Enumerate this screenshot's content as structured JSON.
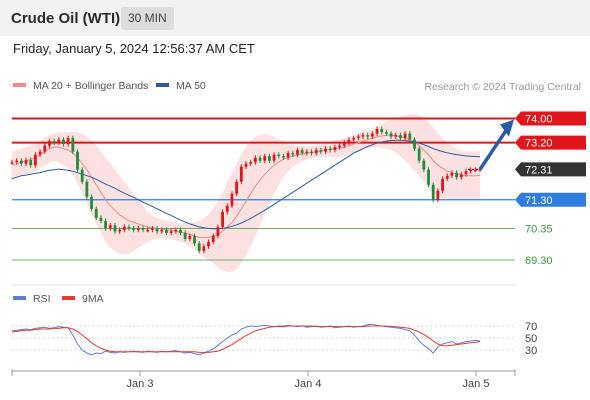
{
  "header": {
    "title": "Crude Oil (WTI)",
    "timeframe": "30 MIN"
  },
  "datetime": "Friday, January 5, 2024 12:56:37 AM CET",
  "legend": {
    "ma20": {
      "label": "MA 20 + Bollinger Bands",
      "color": "#f28b87"
    },
    "ma50": {
      "label": "MA 50",
      "color": "#2f5a9c"
    },
    "rsi": {
      "label": "RSI",
      "color": "#5b7fd6"
    },
    "rsi_ma": {
      "label": "9MA",
      "color": "#e53935"
    }
  },
  "source": "Research © 2024 Trading Central",
  "colors": {
    "resistance": "#e0161b",
    "support": "#2f7de1",
    "target_zone": "#3b9a3b",
    "current": "#333333",
    "arrow": "#2a5ca8",
    "candle_up": "#e0161b",
    "candle_down": "#1f8c3a"
  },
  "chart_data": [
    {
      "type": "candlestick",
      "y_min": 68.9,
      "y_max": 74.45,
      "x_ticks": [
        "Jan 3",
        "Jan 4",
        "Jan 5"
      ],
      "levels": [
        {
          "value": 74.0,
          "label": "74.00",
          "kind": "resistance"
        },
        {
          "value": 73.2,
          "label": "73.20",
          "kind": "resistance"
        },
        {
          "value": 72.31,
          "label": "72.31",
          "kind": "current"
        },
        {
          "value": 71.3,
          "label": "71.30",
          "kind": "support"
        },
        {
          "value": 70.35,
          "label": "70.35",
          "kind": "target"
        },
        {
          "value": 69.3,
          "label": "69.30",
          "kind": "target"
        }
      ],
      "close_series": [
        72.55,
        72.6,
        72.5,
        72.62,
        72.45,
        72.8,
        72.9,
        73.1,
        73.25,
        73.2,
        73.3,
        73.15,
        73.35,
        72.9,
        72.3,
        71.9,
        71.4,
        71.0,
        70.7,
        70.6,
        70.35,
        70.45,
        70.25,
        70.3,
        70.4,
        70.35,
        70.3,
        70.35,
        70.3,
        70.3,
        70.35,
        70.25,
        70.3,
        70.2,
        70.25,
        70.3,
        70.2,
        70.0,
        70.1,
        69.85,
        69.6,
        69.75,
        69.9,
        70.1,
        70.4,
        70.9,
        71.1,
        71.5,
        71.9,
        72.4,
        72.5,
        72.55,
        72.7,
        72.6,
        72.75,
        72.6,
        72.8,
        72.75,
        72.7,
        72.85,
        72.8,
        72.95,
        72.85,
        72.9,
        72.85,
        72.95,
        72.9,
        73.0,
        72.95,
        73.05,
        73.1,
        73.2,
        73.3,
        73.35,
        73.4,
        73.45,
        73.4,
        73.5,
        73.65,
        73.55,
        73.5,
        73.4,
        73.45,
        73.35,
        73.5,
        73.3,
        73.0,
        72.6,
        72.3,
        71.8,
        71.3,
        71.6,
        72.0,
        72.1,
        72.2,
        72.05,
        72.15,
        72.25,
        72.3,
        72.3,
        72.32
      ],
      "ma20": [
        72.45,
        72.5,
        72.55,
        72.6,
        72.65,
        72.7,
        72.8,
        72.9,
        73.0,
        73.05,
        73.05,
        73.0,
        72.95,
        72.85,
        72.7,
        72.5,
        72.3,
        72.05,
        71.8,
        71.55,
        71.3,
        71.1,
        70.95,
        70.8,
        70.7,
        70.6,
        70.55,
        70.5,
        70.45,
        70.4,
        70.38,
        70.35,
        70.33,
        70.3,
        70.28,
        70.25,
        70.22,
        70.2,
        70.15,
        70.1,
        70.05,
        70.05,
        70.05,
        70.1,
        70.15,
        70.25,
        70.4,
        70.55,
        70.75,
        71.0,
        71.25,
        71.5,
        71.75,
        71.95,
        72.15,
        72.3,
        72.45,
        72.55,
        72.65,
        72.7,
        72.75,
        72.8,
        72.82,
        72.85,
        72.87,
        72.9,
        72.92,
        72.95,
        72.97,
        73.0,
        73.02,
        73.05,
        73.1,
        73.15,
        73.2,
        73.25,
        73.3,
        73.35,
        73.4,
        73.42,
        73.45,
        73.45,
        73.42,
        73.4,
        73.35,
        73.3,
        73.2,
        73.1,
        72.95,
        72.8,
        72.6,
        72.45,
        72.35,
        72.25,
        72.2,
        72.15,
        72.12,
        72.1,
        72.1,
        72.1,
        72.12
      ],
      "ma50": [
        72.0,
        72.05,
        72.1,
        72.12,
        72.15,
        72.18,
        72.2,
        72.25,
        72.28,
        72.3,
        72.32,
        72.3,
        72.28,
        72.25,
        72.2,
        72.15,
        72.1,
        72.05,
        71.98,
        71.9,
        71.82,
        71.75,
        71.68,
        71.6,
        71.52,
        71.45,
        71.38,
        71.3,
        71.22,
        71.15,
        71.08,
        71.0,
        70.92,
        70.85,
        70.78,
        70.7,
        70.63,
        70.56,
        70.5,
        70.45,
        70.4,
        70.37,
        70.35,
        70.34,
        70.34,
        70.35,
        70.38,
        70.42,
        70.47,
        70.53,
        70.6,
        70.68,
        70.77,
        70.86,
        70.95,
        71.05,
        71.15,
        71.25,
        71.35,
        71.45,
        71.55,
        71.65,
        71.75,
        71.85,
        71.95,
        72.05,
        72.15,
        72.25,
        72.35,
        72.45,
        72.55,
        72.65,
        72.75,
        72.85,
        72.92,
        73.0,
        73.07,
        73.13,
        73.18,
        73.22,
        73.25,
        73.27,
        73.28,
        73.28,
        73.27,
        73.25,
        73.22,
        73.18,
        73.13,
        73.07,
        73.0,
        72.95,
        72.9,
        72.86,
        72.83,
        72.8,
        72.78,
        72.76,
        72.75,
        72.74,
        72.73
      ],
      "bb_width": [
        0.45,
        0.45,
        0.45,
        0.45,
        0.45,
        0.45,
        0.45,
        0.45,
        0.45,
        0.45,
        0.5,
        0.55,
        0.6,
        0.7,
        0.85,
        1.0,
        1.1,
        1.2,
        1.3,
        1.35,
        1.4,
        1.4,
        1.35,
        1.3,
        1.2,
        1.1,
        0.95,
        0.8,
        0.65,
        0.5,
        0.4,
        0.35,
        0.3,
        0.3,
        0.3,
        0.3,
        0.32,
        0.35,
        0.4,
        0.45,
        0.55,
        0.65,
        0.75,
        0.9,
        1.1,
        1.3,
        1.5,
        1.65,
        1.75,
        1.8,
        1.8,
        1.75,
        1.65,
        1.5,
        1.35,
        1.15,
        0.95,
        0.75,
        0.6,
        0.45,
        0.35,
        0.3,
        0.25,
        0.22,
        0.2,
        0.2,
        0.2,
        0.22,
        0.25,
        0.28,
        0.3,
        0.3,
        0.3,
        0.3,
        0.3,
        0.3,
        0.3,
        0.3,
        0.35,
        0.4,
        0.45,
        0.5,
        0.55,
        0.65,
        0.75,
        0.85,
        0.95,
        1.0,
        1.05,
        1.1,
        1.1,
        1.05,
        1.0,
        0.95,
        0.9,
        0.85,
        0.8,
        0.8,
        0.8,
        0.8,
        0.8
      ],
      "forecast": {
        "from": 72.31,
        "to": 74.0
      }
    },
    {
      "type": "line",
      "y_min": 0,
      "y_max": 100,
      "y_ticks": [
        70,
        50,
        30
      ],
      "rsi": [
        62,
        63,
        64,
        65,
        64,
        66,
        67,
        68,
        66,
        67,
        69,
        68,
        67,
        55,
        40,
        30,
        25,
        22,
        25,
        24,
        28,
        26,
        25,
        27,
        26,
        27,
        28,
        27,
        26,
        28,
        27,
        26,
        28,
        27,
        28,
        29,
        27,
        25,
        26,
        24,
        22,
        25,
        28,
        32,
        38,
        44,
        50,
        55,
        58,
        65,
        68,
        70,
        69,
        70,
        71,
        70,
        69,
        70,
        70,
        71,
        70,
        69,
        70,
        68,
        69,
        70,
        68,
        69,
        70,
        67,
        68,
        69,
        70,
        68,
        69,
        70,
        72,
        73,
        71,
        70,
        69,
        68,
        67,
        66,
        64,
        62,
        55,
        45,
        38,
        32,
        25,
        35,
        40,
        42,
        44,
        40,
        42,
        44,
        45,
        46,
        45
      ],
      "rsi_ma": [
        60,
        61,
        62,
        63,
        63,
        64,
        65,
        65,
        65,
        66,
        66,
        67,
        67,
        65,
        61,
        55,
        49,
        42,
        37,
        33,
        30,
        28,
        27,
        27,
        27,
        27,
        27,
        27,
        27,
        27,
        27,
        27,
        27,
        27,
        27,
        27,
        27,
        27,
        27,
        27,
        26,
        26,
        26,
        27,
        28,
        31,
        35,
        39,
        44,
        49,
        54,
        58,
        62,
        64,
        66,
        68,
        69,
        69,
        69,
        70,
        70,
        70,
        70,
        70,
        70,
        69,
        69,
        69,
        69,
        69,
        69,
        69,
        69,
        69,
        69,
        69,
        70,
        70,
        70,
        70,
        70,
        69,
        69,
        68,
        67,
        66,
        63,
        60,
        56,
        51,
        45,
        40,
        37,
        37,
        38,
        39,
        40,
        41,
        42,
        43,
        44
      ]
    }
  ]
}
